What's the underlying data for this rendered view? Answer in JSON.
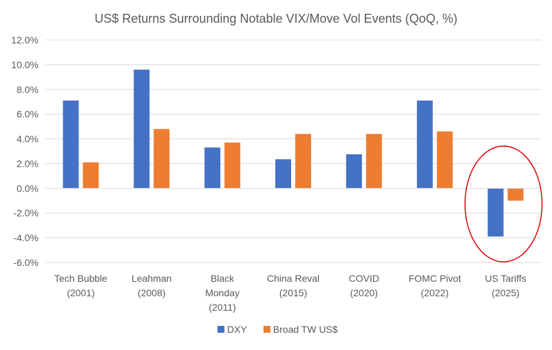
{
  "chart_data": {
    "type": "bar",
    "title": "US$ Returns Surrounding Notable VIX/Move Vol Events (QoQ, %)",
    "xlabel": "",
    "ylabel": "",
    "ylim": [
      -6,
      12
    ],
    "yticks": [
      "12.0%",
      "10.0%",
      "8.0%",
      "6.0%",
      "4.0%",
      "2.0%",
      "0.0%",
      "-2.0%",
      "-4.0%",
      "-6.0%"
    ],
    "ytick_values": [
      12,
      10,
      8,
      6,
      4,
      2,
      0,
      -2,
      -4,
      -6
    ],
    "grid": true,
    "legend_position": "bottom",
    "categories": [
      [
        "Tech Bubble",
        "(2001)"
      ],
      [
        "Leahman",
        "(2008)"
      ],
      [
        "Black",
        "Monday",
        "(2011)"
      ],
      [
        "China Reval",
        "(2015)"
      ],
      [
        "COVID",
        "(2020)"
      ],
      [
        "FOMC Pivot",
        "(2022)"
      ],
      [
        "US Tariffs",
        "(2025)"
      ]
    ],
    "series": [
      {
        "name": "DXY",
        "color": "#4472c4",
        "values": [
          7.1,
          9.6,
          3.3,
          2.35,
          2.75,
          7.1,
          -3.9
        ]
      },
      {
        "name": "Broad TW US$",
        "color": "#ed7d31",
        "values": [
          2.1,
          4.8,
          3.7,
          4.4,
          4.4,
          4.6,
          -1.0
        ]
      }
    ],
    "annotations": [
      {
        "type": "ellipse",
        "target_category": "US Tariffs",
        "color": "#e00000"
      }
    ]
  }
}
